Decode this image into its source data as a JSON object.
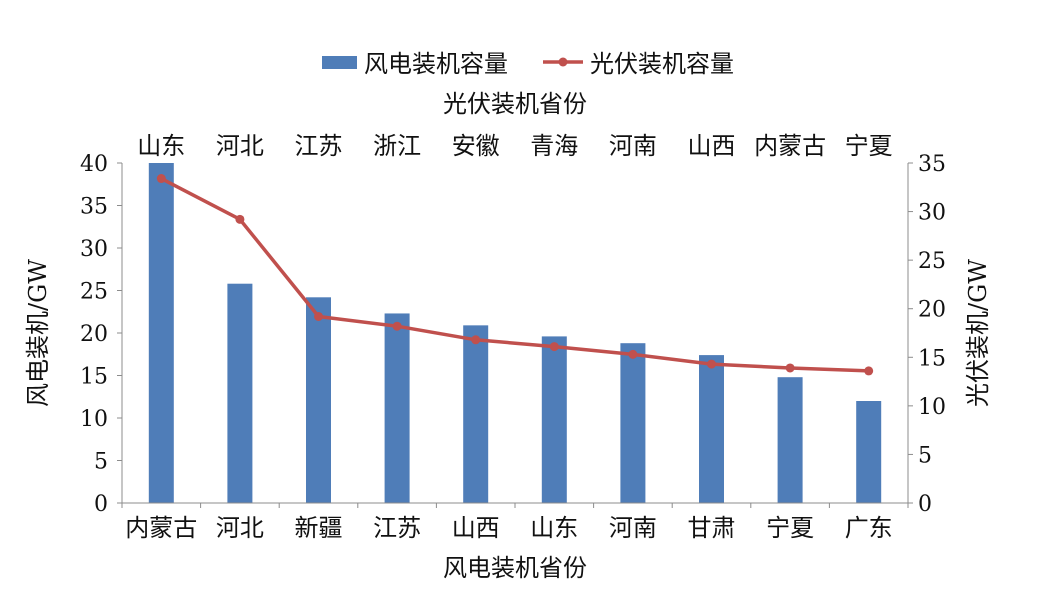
{
  "chart_data": {
    "type": "bar+line",
    "legend": {
      "placement": "top",
      "items": [
        {
          "label": "风电装机容量",
          "kind": "bar",
          "color": "#4F7DB8"
        },
        {
          "label": "光伏装机容量",
          "kind": "line",
          "color": "#C0504D"
        }
      ]
    },
    "bar_series": {
      "name": "风电装机容量",
      "categories": [
        "内蒙古",
        "河北",
        "新疆",
        "江苏",
        "山西",
        "山东",
        "河南",
        "甘肃",
        "宁夏",
        "广东"
      ],
      "values": [
        40.0,
        25.8,
        24.2,
        22.3,
        20.9,
        19.6,
        18.8,
        17.4,
        14.8,
        12.0
      ],
      "color": "#4F7DB8",
      "axis": "left"
    },
    "line_series": {
      "name": "光伏装机容量",
      "categories": [
        "山东",
        "河北",
        "江苏",
        "浙江",
        "安徽",
        "青海",
        "河南",
        "山西",
        "内蒙古",
        "宁夏"
      ],
      "values": [
        33.4,
        29.2,
        19.2,
        18.2,
        16.8,
        16.1,
        15.3,
        14.3,
        13.9,
        13.6
      ],
      "color": "#C0504D",
      "axis": "right"
    },
    "left_axis": {
      "label": "风电装机/GW",
      "range": [
        0,
        40
      ],
      "ticks": [
        0,
        5,
        10,
        15,
        20,
        25,
        30,
        35,
        40
      ]
    },
    "right_axis": {
      "label": "光伏装机/GW",
      "range": [
        0,
        35
      ],
      "ticks": [
        0,
        5,
        10,
        15,
        20,
        25,
        30,
        35
      ]
    },
    "bottom_axis_title": "风电装机省份",
    "top_axis_title": "光伏装机省份",
    "grid": false
  }
}
